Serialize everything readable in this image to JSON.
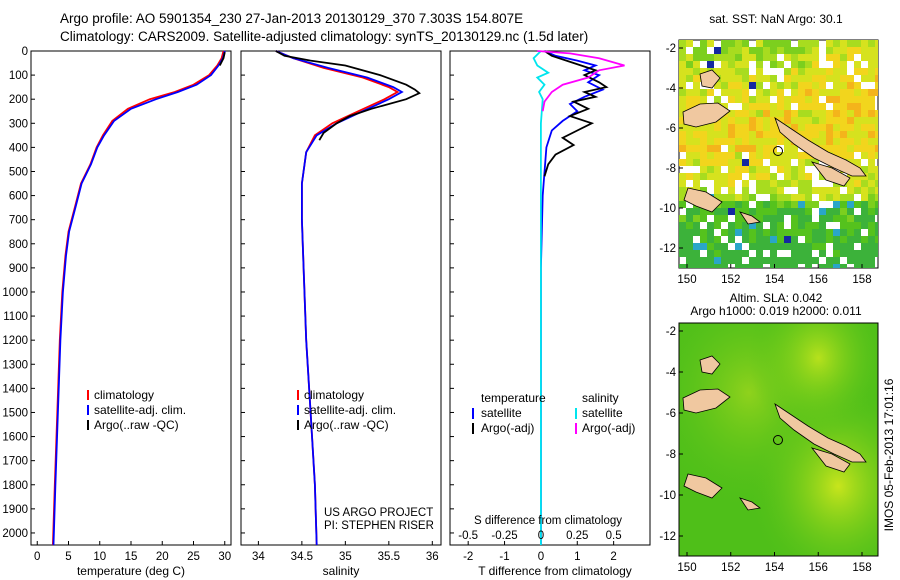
{
  "header": {
    "line1": "Argo profile: AO 5901354_230 27-Jan-2013 20130129_370 7.303S 154.807E",
    "line2": "Climatology: CARS2009. Satellite-adjusted climatology: synTS_20130129.nc (1.5d later)"
  },
  "colors": {
    "climatology": "#ff0000",
    "satellite": "#0000ff",
    "argo": "#000000",
    "s_satellite": "#00e5ee",
    "s_argo": "#ff00ff"
  },
  "chart_data": [
    {
      "id": "temperature",
      "type": "line",
      "xlabel": "temperature (deg C)",
      "ylabel": "",
      "xlim": [
        -1,
        31
      ],
      "ylim": [
        2050,
        0
      ],
      "xticks": [
        0,
        5,
        10,
        15,
        20,
        25,
        30
      ],
      "yticks": [
        0,
        100,
        200,
        300,
        400,
        500,
        600,
        700,
        800,
        900,
        1000,
        1100,
        1200,
        1300,
        1400,
        1500,
        1600,
        1700,
        1800,
        1900,
        2000
      ],
      "legend": [
        "climatology",
        "satellite-adj. clim.",
        "Argo(..raw -QC)"
      ],
      "series": [
        {
          "name": "climatology",
          "color": "#ff0000",
          "points": [
            [
              29.8,
              0
            ],
            [
              29.5,
              30
            ],
            [
              28.8,
              60
            ],
            [
              27.5,
              100
            ],
            [
              25,
              140
            ],
            [
              22,
              170
            ],
            [
              18,
              200
            ],
            [
              14.5,
              240
            ],
            [
              12,
              290
            ],
            [
              10.5,
              350
            ],
            [
              9.5,
              400
            ],
            [
              8.5,
              470
            ],
            [
              7,
              550
            ],
            [
              6,
              650
            ],
            [
              5,
              750
            ],
            [
              4.5,
              850
            ],
            [
              4,
              1000
            ],
            [
              3.6,
              1200
            ],
            [
              3.2,
              1500
            ],
            [
              2.8,
              1800
            ],
            [
              2.5,
              2050
            ]
          ]
        },
        {
          "name": "satellite-adj. clim.",
          "color": "#0000ff",
          "points": [
            [
              30,
              0
            ],
            [
              29.7,
              30
            ],
            [
              29,
              60
            ],
            [
              27.8,
              100
            ],
            [
              25.5,
              140
            ],
            [
              22.5,
              170
            ],
            [
              19,
              200
            ],
            [
              15,
              240
            ],
            [
              12.3,
              290
            ],
            [
              10.7,
              350
            ],
            [
              9.6,
              400
            ],
            [
              8.6,
              470
            ],
            [
              7.1,
              550
            ],
            [
              6.1,
              650
            ],
            [
              5.1,
              750
            ],
            [
              4.6,
              850
            ],
            [
              4.1,
              1000
            ],
            [
              3.7,
              1200
            ],
            [
              3.3,
              1500
            ],
            [
              2.9,
              1800
            ],
            [
              2.6,
              2050
            ]
          ]
        },
        {
          "name": "Argo(..raw -QC)",
          "color": "#000000",
          "points": [
            [
              30,
              5
            ],
            [
              29.8,
              30
            ],
            [
              29.2,
              60
            ]
          ]
        }
      ]
    },
    {
      "id": "salinity",
      "type": "line",
      "xlabel": "salinity",
      "ylabel": "",
      "xlim": [
        33.8,
        36.1
      ],
      "ylim": [
        2050,
        0
      ],
      "xticks": [
        34,
        34.5,
        35,
        35.5,
        36
      ],
      "yticks": [],
      "legend": [
        "climatology",
        "satellite-adj. clim.",
        "Argo(..raw -QC)"
      ],
      "annotation": [
        "US ARGO PROJECT",
        "PI: STEPHEN RISER"
      ],
      "series": [
        {
          "name": "climatology",
          "color": "#ff0000",
          "points": [
            [
              34.2,
              0
            ],
            [
              34.4,
              30
            ],
            [
              34.75,
              70
            ],
            [
              35.2,
              110
            ],
            [
              35.5,
              150
            ],
            [
              35.6,
              170
            ],
            [
              35.45,
              200
            ],
            [
              35.15,
              250
            ],
            [
              34.85,
              300
            ],
            [
              34.65,
              350
            ],
            [
              34.55,
              420
            ],
            [
              34.5,
              550
            ],
            [
              34.5,
              700
            ],
            [
              34.52,
              900
            ],
            [
              34.55,
              1200
            ],
            [
              34.6,
              1500
            ],
            [
              34.65,
              1800
            ],
            [
              34.67,
              2050
            ]
          ]
        },
        {
          "name": "satellite-adj. clim.",
          "color": "#0000ff",
          "points": [
            [
              34.2,
              0
            ],
            [
              34.4,
              30
            ],
            [
              34.8,
              70
            ],
            [
              35.25,
              110
            ],
            [
              35.55,
              150
            ],
            [
              35.65,
              170
            ],
            [
              35.5,
              200
            ],
            [
              35.2,
              250
            ],
            [
              34.9,
              300
            ],
            [
              34.67,
              350
            ],
            [
              34.55,
              420
            ],
            [
              34.5,
              550
            ],
            [
              34.5,
              700
            ],
            [
              34.52,
              900
            ],
            [
              34.55,
              1200
            ],
            [
              34.6,
              1500
            ],
            [
              34.65,
              1800
            ],
            [
              34.67,
              2050
            ]
          ]
        },
        {
          "name": "Argo(..raw -QC)",
          "color": "#000000",
          "points": [
            [
              34.2,
              0
            ],
            [
              34.3,
              20
            ],
            [
              34.6,
              40
            ],
            [
              35.0,
              60
            ],
            [
              35.4,
              100
            ],
            [
              35.7,
              140
            ],
            [
              35.8,
              160
            ],
            [
              35.85,
              175
            ],
            [
              35.7,
              200
            ],
            [
              35.3,
              240
            ],
            [
              35.05,
              270
            ],
            [
              34.9,
              300
            ],
            [
              34.75,
              340
            ],
            [
              34.7,
              370
            ]
          ]
        }
      ]
    },
    {
      "id": "difference",
      "type": "line",
      "xlabel": "T difference from climatology",
      "x2label": "S difference from climatology",
      "xlim": [
        -2.5,
        3
      ],
      "ylim": [
        2050,
        0
      ],
      "xticks": [
        -2,
        -1,
        0,
        1,
        2
      ],
      "x2ticks": [
        -0.5,
        -0.25,
        0,
        0.25,
        0.5
      ],
      "x2tick_labels": [
        "-0.5",
        "-0.25",
        "0",
        "0.25",
        "0.5"
      ],
      "yticks": [],
      "legend_temperature": {
        "title": "temperature",
        "entries": [
          "satellite",
          "Argo(-adj)"
        ]
      },
      "legend_salinity": {
        "title": "salinity",
        "entries": [
          "satellite",
          "Argo(-adj)"
        ]
      },
      "series": [
        {
          "name": "T satellite",
          "color": "#0000ff",
          "points": [
            [
              0.1,
              0
            ],
            [
              0.4,
              20
            ],
            [
              1.0,
              40
            ],
            [
              1.5,
              60
            ],
            [
              1.2,
              80
            ],
            [
              1.6,
              100
            ],
            [
              1.3,
              130
            ],
            [
              1.7,
              160
            ],
            [
              1.2,
              190
            ],
            [
              0.8,
              220
            ],
            [
              1.0,
              250
            ],
            [
              0.6,
              290
            ],
            [
              0.3,
              330
            ],
            [
              0.15,
              400
            ],
            [
              0.05,
              600
            ],
            [
              0,
              900
            ],
            [
              0,
              1300
            ],
            [
              0,
              1700
            ],
            [
              0,
              2050
            ]
          ]
        },
        {
          "name": "T Argo(-adj)",
          "color": "#000000",
          "points": [
            [
              0.1,
              0
            ],
            [
              0.3,
              20
            ],
            [
              0.9,
              50
            ],
            [
              1.5,
              80
            ],
            [
              1.2,
              100
            ],
            [
              1.6,
              130
            ],
            [
              1.8,
              150
            ],
            [
              1.2,
              170
            ],
            [
              1.5,
              190
            ],
            [
              0.9,
              210
            ],
            [
              1.3,
              240
            ],
            [
              0.8,
              270
            ],
            [
              1.4,
              300
            ],
            [
              1.0,
              330
            ],
            [
              0.6,
              360
            ],
            [
              0.9,
              390
            ],
            [
              0.4,
              430
            ],
            [
              0.2,
              470
            ],
            [
              0.1,
              520
            ]
          ]
        },
        {
          "name": "S satellite",
          "color": "#00e5ee",
          "points": [
            [
              0,
              0
            ],
            [
              -0.2,
              30
            ],
            [
              -0.1,
              60
            ],
            [
              0.2,
              90
            ],
            [
              -0.1,
              110
            ],
            [
              0.1,
              140
            ],
            [
              -0.05,
              170
            ],
            [
              0.05,
              200
            ],
            [
              0,
              300
            ],
            [
              0,
              500
            ],
            [
              0,
              900
            ],
            [
              0,
              1300
            ],
            [
              0,
              1700
            ],
            [
              0,
              2050
            ]
          ]
        },
        {
          "name": "S Argo(-adj)",
          "color": "#ff00ff",
          "points": [
            [
              -0.1,
              0
            ],
            [
              0.8,
              10
            ],
            [
              1.6,
              30
            ],
            [
              2.3,
              60
            ],
            [
              1.6,
              80
            ],
            [
              1.3,
              110
            ],
            [
              0.6,
              140
            ],
            [
              0.3,
              170
            ],
            [
              0.1,
              210
            ],
            [
              0.05,
              250
            ]
          ]
        }
      ]
    }
  ],
  "maps": {
    "sst": {
      "title": "sat. SST: NaN Argo: 30.1",
      "xticks": [
        150,
        152,
        154,
        156,
        158
      ],
      "yticks": [
        -2,
        -4,
        -6,
        -8,
        -10,
        -12
      ]
    },
    "sla": {
      "title": "Altim. SLA: 0.042",
      "subtitle": "Argo h1000: 0.019 h2000: 0.011",
      "xticks": [
        150,
        152,
        154,
        156,
        158
      ],
      "yticks": [
        -2,
        -4,
        -6,
        -8,
        -10,
        -12
      ]
    }
  },
  "footer": {
    "credit": "IMOS 05-Feb-2013 17:01:16"
  }
}
